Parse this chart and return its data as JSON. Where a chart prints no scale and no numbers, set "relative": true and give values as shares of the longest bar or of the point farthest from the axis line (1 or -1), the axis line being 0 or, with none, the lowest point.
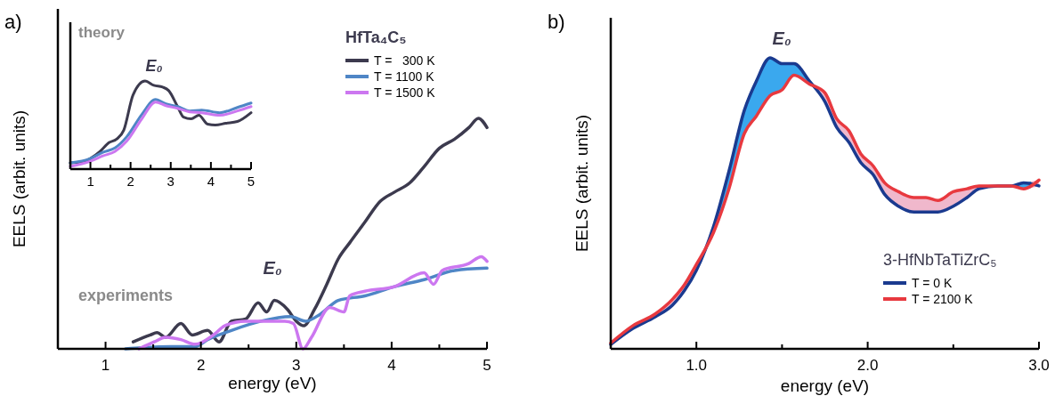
{
  "chart_data": [
    {
      "type": "line",
      "relative": true,
      "xlabel": "energy (eV)",
      "ylabel": "EELS (arbit. units)",
      "legend_title": "HfTa₄C₅",
      "legend": "top right",
      "xlim": [
        0.5,
        5
      ],
      "xticks": [
        1,
        {
          "value": 1.5,
          "label": null
        },
        2,
        {
          "value": 2.5,
          "label": null
        },
        3,
        {
          "value": 3.5,
          "label": null
        },
        4,
        {
          "value": 4.5,
          "label": null
        },
        5
      ],
      "annotations": [
        "a)",
        "experiments",
        "E₀"
      ],
      "series": [
        {
          "name": "T =   300 K",
          "color": "#3c3a4e",
          "x": [
            1.29,
            1.47,
            1.54,
            1.63,
            1.79,
            1.91,
            2.07,
            2.19,
            2.32,
            2.47,
            2.6,
            2.69,
            2.77,
            2.91,
            3.0,
            3.08,
            3.19,
            3.32,
            3.44,
            3.56,
            3.72,
            3.88,
            4.03,
            4.19,
            4.34,
            4.5,
            4.66,
            4.81,
            4.91,
            5.0
          ],
          "values": [
            0.03,
            0.06,
            0.07,
            0.05,
            0.11,
            0.06,
            0.08,
            0.03,
            0.12,
            0.13,
            0.2,
            0.16,
            0.21,
            0.17,
            0.12,
            0.1,
            0.17,
            0.28,
            0.39,
            0.46,
            0.55,
            0.64,
            0.68,
            0.72,
            0.79,
            0.87,
            0.91,
            0.96,
            1.0,
            0.96
          ]
        },
        {
          "name": "T = 1100 K",
          "color": "#4f86c6",
          "x": [
            1.21,
            1.38,
            1.69,
            1.94,
            2.07,
            2.32,
            2.63,
            2.94,
            3.1,
            3.25,
            3.44,
            3.72,
            4.03,
            4.34,
            4.66,
            5.0
          ],
          "values": [
            0.0,
            0.005,
            0.01,
            0.01,
            0.04,
            0.08,
            0.12,
            0.14,
            0.12,
            0.15,
            0.21,
            0.23,
            0.27,
            0.3,
            0.34,
            0.35
          ]
        },
        {
          "name": "T = 1500 K",
          "color": "#cc77f0",
          "x": [
            1.35,
            1.51,
            1.63,
            1.79,
            1.94,
            2.13,
            2.25,
            2.47,
            2.69,
            2.88,
            2.97,
            3.07,
            3.16,
            3.35,
            3.5,
            3.56,
            3.72,
            4.03,
            4.34,
            4.44,
            4.53,
            4.81,
            4.94,
            5.0
          ],
          "values": [
            0.0,
            0.03,
            0.05,
            0.04,
            0.02,
            0.06,
            0.1,
            0.12,
            0.12,
            0.12,
            0.11,
            0.0,
            0.05,
            0.18,
            0.16,
            0.23,
            0.25,
            0.27,
            0.33,
            0.28,
            0.34,
            0.37,
            0.4,
            0.38
          ]
        }
      ]
    },
    {
      "type": "line",
      "relative": true,
      "xlim": [
        0.5,
        5
      ],
      "xticks": [
        1,
        {
          "value": 1.5,
          "label": null
        },
        2,
        {
          "value": 2.5,
          "label": null
        },
        3,
        {
          "value": 3.5,
          "label": null
        },
        4,
        {
          "value": 4.5,
          "label": null
        },
        5
      ],
      "annotations": [
        "theory",
        "E₀"
      ],
      "series": [
        {
          "color": "#3c3a4e",
          "x": [
            0.5,
            0.79,
            1.0,
            1.24,
            1.46,
            1.65,
            1.83,
            2.06,
            2.36,
            2.58,
            2.8,
            2.95,
            3.17,
            3.32,
            3.51,
            3.7,
            3.92,
            4.11,
            4.37,
            4.66,
            5.0
          ],
          "values": [
            0.07,
            0.08,
            0.12,
            0.2,
            0.3,
            0.34,
            0.44,
            0.84,
            1.0,
            0.95,
            0.93,
            0.89,
            0.71,
            0.59,
            0.57,
            0.61,
            0.51,
            0.5,
            0.52,
            0.54,
            0.64
          ]
        },
        {
          "color": "#4f86c6",
          "x": [
            0.5,
            1.0,
            1.31,
            1.61,
            1.91,
            2.28,
            2.62,
            2.88,
            3.17,
            3.47,
            3.77,
            4.22,
            4.66,
            5.0
          ],
          "values": [
            0.07,
            0.12,
            0.19,
            0.24,
            0.37,
            0.62,
            0.79,
            0.74,
            0.71,
            0.66,
            0.67,
            0.64,
            0.7,
            0.75
          ]
        },
        {
          "color": "#cc77f0",
          "x": [
            0.5,
            1.0,
            1.31,
            1.61,
            1.91,
            2.28,
            2.62,
            2.88,
            3.17,
            3.47,
            3.77,
            4.22,
            4.66,
            5.0
          ],
          "values": [
            0.03,
            0.09,
            0.15,
            0.2,
            0.32,
            0.57,
            0.76,
            0.72,
            0.69,
            0.65,
            0.64,
            0.61,
            0.66,
            0.71
          ]
        }
      ]
    },
    {
      "type": "line",
      "relative": true,
      "xlabel": "energy (eV)",
      "ylabel": "EELS (arbit. units)",
      "legend_title": "3-HfNbTaTiZrC₅",
      "legend": "bottom right",
      "xlim": [
        0.5,
        3.0
      ],
      "xticks": [
        {
          "value": 1,
          "label": "1.0"
        },
        {
          "value": 1.5,
          "label": null
        },
        {
          "value": 2,
          "label": "2.0"
        },
        {
          "value": 2.5,
          "label": null
        },
        {
          "value": 3,
          "label": "3.0"
        }
      ],
      "annotations": [
        "b)",
        "E₀"
      ],
      "x": [
        0.5,
        0.63,
        0.76,
        0.86,
        0.93,
        1.0,
        1.1,
        1.19,
        1.28,
        1.35,
        1.43,
        1.5,
        1.57,
        1.66,
        1.75,
        1.82,
        1.89,
        1.96,
        2.03,
        2.1,
        2.18,
        2.27,
        2.34,
        2.41,
        2.5,
        2.58,
        2.65,
        2.76,
        2.84,
        2.91,
        3.0
      ],
      "series": [
        {
          "name": "T = 0 K",
          "color": "#1a3a8f",
          "values": [
            0.015,
            0.07,
            0.11,
            0.15,
            0.2,
            0.27,
            0.42,
            0.61,
            0.82,
            0.92,
            1.0,
            0.98,
            0.98,
            0.92,
            0.85,
            0.76,
            0.71,
            0.64,
            0.6,
            0.53,
            0.49,
            0.47,
            0.47,
            0.47,
            0.49,
            0.52,
            0.55,
            0.56,
            0.56,
            0.57,
            0.56
          ],
          "lower": [
            0.015,
            0.07,
            0.11,
            0.15,
            0.2,
            0.27,
            0.4,
            0.55,
            0.74,
            0.8,
            0.87,
            0.89,
            0.94,
            0.91,
            0.85,
            0.76,
            0.71,
            0.64,
            0.6,
            0.53,
            0.49,
            0.47,
            0.47,
            0.47,
            0.49,
            0.52,
            0.55,
            0.56,
            0.56,
            0.55,
            0.56
          ],
          "upper": [
            0.02,
            0.08,
            0.12,
            0.17,
            0.22,
            0.29,
            0.42,
            0.61,
            0.82,
            0.92,
            1.0,
            0.98,
            0.98,
            0.92,
            0.88,
            0.79,
            0.75,
            0.67,
            0.63,
            0.57,
            0.54,
            0.52,
            0.52,
            0.51,
            0.54,
            0.55,
            0.56,
            0.56,
            0.56,
            0.57,
            0.58
          ]
        },
        {
          "name": "T = 2100 K",
          "color": "#e8393f",
          "values": [
            0.02,
            0.08,
            0.12,
            0.17,
            0.22,
            0.29,
            0.4,
            0.55,
            0.74,
            0.8,
            0.87,
            0.89,
            0.94,
            0.91,
            0.88,
            0.79,
            0.75,
            0.67,
            0.63,
            0.57,
            0.54,
            0.52,
            0.52,
            0.51,
            0.54,
            0.55,
            0.56,
            0.56,
            0.56,
            0.55,
            0.58
          ]
        }
      ]
    }
  ]
}
